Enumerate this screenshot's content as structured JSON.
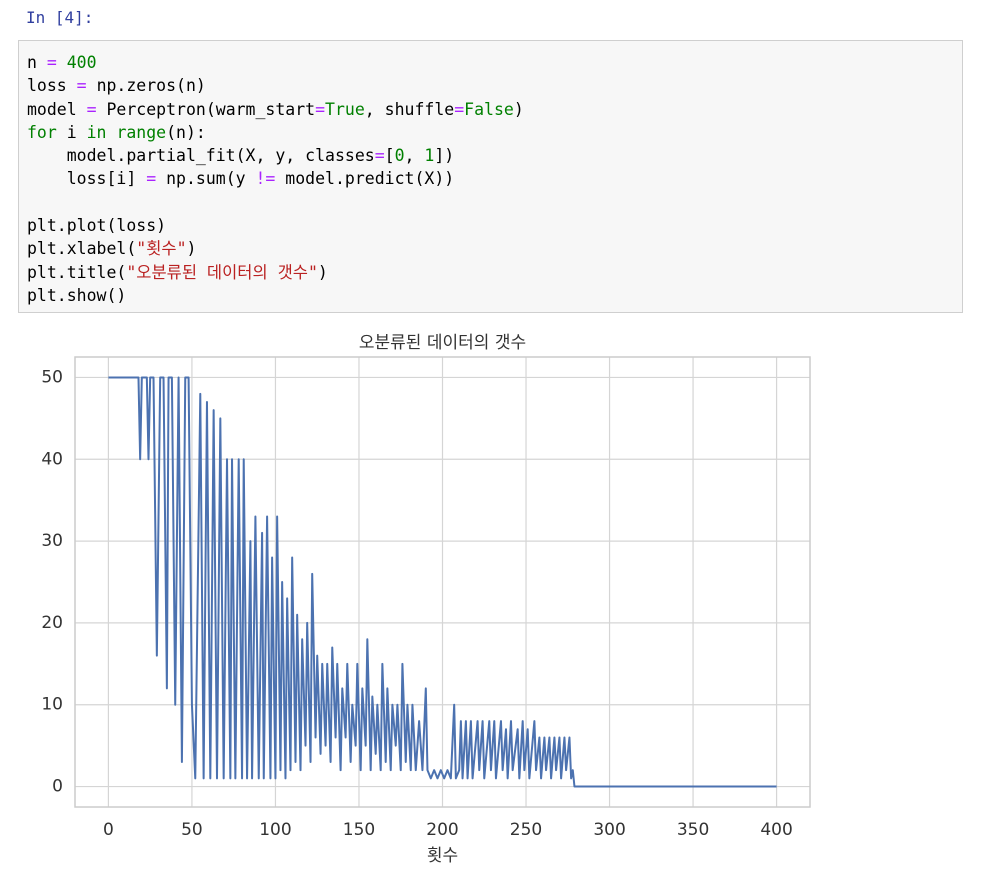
{
  "prompt": "In [4]:",
  "code": [
    [
      [
        "n",
        "n"
      ],
      [
        " = ",
        "op"
      ],
      [
        "400",
        "num"
      ]
    ],
    [
      [
        "loss",
        "n"
      ],
      [
        " = ",
        "op"
      ],
      [
        "np.zeros(n)",
        "n"
      ]
    ],
    [
      [
        "model",
        "n"
      ],
      [
        " = ",
        "op"
      ],
      [
        "Perceptron(warm_start",
        "n"
      ],
      [
        "=",
        "op"
      ],
      [
        "True",
        "kw"
      ],
      [
        ", shuffle",
        "n"
      ],
      [
        "=",
        "op"
      ],
      [
        "False",
        "kw"
      ],
      [
        ")",
        "n"
      ]
    ],
    [
      [
        "for",
        "kw"
      ],
      [
        " i ",
        "n"
      ],
      [
        "in",
        "kw"
      ],
      [
        " ",
        "n"
      ],
      [
        "range",
        "kw"
      ],
      [
        "(n):",
        "n"
      ]
    ],
    [
      [
        "    model.partial_fit(X, y, classes",
        "n"
      ],
      [
        "=",
        "op"
      ],
      [
        "[",
        "n"
      ],
      [
        "0",
        "num"
      ],
      [
        ", ",
        "n"
      ],
      [
        "1",
        "num"
      ],
      [
        "])",
        "n"
      ]
    ],
    [
      [
        "    loss[i] ",
        "n"
      ],
      [
        "=",
        "op"
      ],
      [
        " np.sum(y ",
        "n"
      ],
      [
        "!=",
        "op"
      ],
      [
        " model.predict(X))",
        "n"
      ]
    ],
    [],
    [
      [
        "plt.plot(loss)",
        "n"
      ]
    ],
    [
      [
        "plt.xlabel(",
        "n"
      ],
      [
        "\"횟수\"",
        "str"
      ],
      [
        ")",
        "n"
      ]
    ],
    [
      [
        "plt.title(",
        "n"
      ],
      [
        "\"오분류된 데이터의 갯수\"",
        "str"
      ],
      [
        ")",
        "n"
      ]
    ],
    [
      [
        "plt.show()",
        "n"
      ]
    ]
  ],
  "chart_data": {
    "type": "line",
    "title": "오분류된 데이터의 갯수",
    "xlabel": "횟수",
    "grid": true,
    "xlim": [
      -20,
      420
    ],
    "ylim": [
      -2.5,
      52.5
    ],
    "xticks": [
      0,
      50,
      100,
      150,
      200,
      250,
      300,
      350,
      400
    ],
    "yticks": [
      0,
      10,
      20,
      30,
      40,
      50
    ],
    "x": [
      0,
      18,
      19,
      20,
      23,
      24,
      25,
      27,
      29,
      31,
      33,
      35,
      36,
      38,
      40,
      42,
      44,
      46,
      48,
      50,
      52,
      55,
      57,
      59,
      61,
      63,
      65,
      67,
      69,
      71,
      73,
      74,
      76,
      78,
      80,
      81,
      83,
      85,
      86,
      88,
      90,
      92,
      93,
      95,
      97,
      98,
      100,
      101,
      103,
      104,
      106,
      107,
      109,
      110,
      112,
      113,
      115,
      116,
      118,
      119,
      121,
      122,
      124,
      125,
      127,
      128,
      130,
      131,
      133,
      134,
      136,
      137,
      139,
      140,
      142,
      143,
      145,
      146,
      148,
      149,
      151,
      152,
      154,
      155,
      157,
      158,
      160,
      161,
      163,
      164,
      166,
      167,
      169,
      170,
      172,
      173,
      175,
      176,
      178,
      179,
      181,
      182,
      184,
      186,
      188,
      190,
      191,
      193,
      195,
      197,
      199,
      201,
      203,
      205,
      207,
      208,
      210,
      211,
      212,
      214,
      215,
      217,
      218,
      221,
      222,
      224,
      225,
      228,
      229,
      231,
      232,
      235,
      236,
      238,
      239,
      241,
      242,
      245,
      246,
      248,
      249,
      251,
      252,
      255,
      256,
      258,
      259,
      261,
      262,
      264,
      265,
      267,
      268,
      270,
      271,
      273,
      274,
      276,
      277,
      278,
      279,
      400
    ],
    "series": [
      {
        "color": "#4c72b0",
        "values": [
          50,
          50,
          40,
          50,
          50,
          40,
          50,
          50,
          16,
          50,
          50,
          12,
          50,
          50,
          10,
          50,
          3,
          50,
          50,
          10,
          1,
          48,
          1,
          47,
          1,
          46,
          1,
          45,
          1,
          40,
          1,
          40,
          1,
          40,
          1,
          40,
          1,
          30,
          1,
          33,
          1,
          31,
          1,
          33,
          1,
          28,
          1,
          33,
          2,
          25,
          1,
          23,
          2,
          28,
          3,
          21,
          2,
          18,
          5,
          20,
          3,
          26,
          6,
          16,
          4,
          15,
          5,
          15,
          3,
          17,
          6,
          15,
          2,
          12,
          6,
          15,
          3,
          10,
          5,
          15,
          2,
          12,
          5,
          18,
          2,
          11,
          4,
          10,
          2,
          15,
          3,
          12,
          2,
          10,
          5,
          10,
          2,
          15,
          3,
          10,
          2,
          10,
          2,
          8,
          2,
          12,
          2,
          1,
          2,
          1,
          2,
          1,
          2,
          1,
          10,
          1,
          2,
          8,
          1,
          8,
          1,
          8,
          1,
          8,
          2,
          8,
          1,
          8,
          2,
          8,
          1,
          8,
          2,
          7,
          1,
          8,
          2,
          7,
          1,
          8,
          2,
          7,
          1,
          8,
          2,
          6,
          1,
          6,
          2,
          6,
          1,
          6,
          2,
          6,
          1,
          6,
          2,
          6,
          1,
          2,
          0,
          0
        ]
      }
    ]
  }
}
